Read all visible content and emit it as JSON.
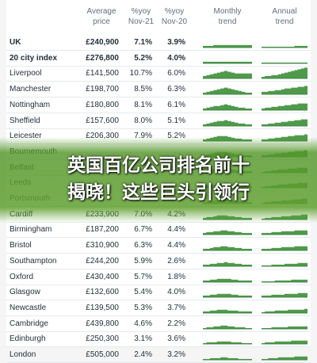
{
  "headers": {
    "avg_price": "Average price",
    "yoy_nov21": "%yoy Nov-21",
    "yoy_nov20": "%yoy Nov-20",
    "monthly": "Monthly trend",
    "annual": "Annual trend"
  },
  "rows": [
    {
      "city": "UK",
      "price": "£240,900",
      "yoy21": "7.1%",
      "yoy20": "3.9%",
      "bold": true,
      "monthly": [
        2,
        2,
        2,
        3,
        3,
        3,
        3,
        3,
        3,
        3,
        3,
        3,
        3,
        3
      ],
      "annual": [
        1,
        1,
        1,
        1,
        1,
        1,
        1,
        1,
        1,
        1,
        2,
        2,
        2,
        2
      ]
    },
    {
      "city": "20 city index",
      "price": "£276,800",
      "yoy21": "5.2%",
      "yoy20": "4.0%",
      "bold": true,
      "monthly": [
        2,
        2,
        2,
        2,
        2,
        2,
        2,
        2,
        2,
        2,
        2,
        2,
        2,
        2
      ],
      "annual": [
        1,
        1,
        1,
        1,
        1,
        1,
        1,
        1,
        1,
        1,
        1,
        1,
        1,
        1
      ]
    },
    {
      "city": "Liverpool",
      "price": "£141,500",
      "yoy21": "10.7%",
      "yoy20": "6.0%",
      "monthly": [
        3,
        4,
        5,
        6,
        7,
        8,
        9,
        8,
        7,
        6,
        6,
        6,
        6,
        6
      ],
      "annual": [
        2,
        3,
        3,
        4,
        4,
        5,
        6,
        7,
        8,
        9,
        10,
        11,
        12,
        13
      ]
    },
    {
      "city": "Manchester",
      "price": "£198,700",
      "yoy21": "8.5%",
      "yoy20": "6.3%",
      "monthly": [
        2,
        3,
        4,
        5,
        6,
        7,
        8,
        7,
        6,
        5,
        4,
        3,
        2,
        2
      ],
      "annual": [
        3,
        3,
        4,
        4,
        5,
        5,
        6,
        7,
        7,
        8,
        8,
        9,
        9,
        10
      ]
    },
    {
      "city": "Nottingham",
      "price": "£180,800",
      "yoy21": "8.1%",
      "yoy20": "6.1%",
      "monthly": [
        2,
        3,
        4,
        5,
        5,
        6,
        7,
        6,
        5,
        4,
        3,
        3,
        2,
        2
      ],
      "annual": [
        2,
        3,
        3,
        4,
        4,
        5,
        5,
        6,
        6,
        7,
        7,
        8,
        8,
        8
      ]
    },
    {
      "city": "Sheffield",
      "price": "£157,600",
      "yoy21": "8.0%",
      "yoy20": "5.1%",
      "monthly": [
        2,
        3,
        4,
        5,
        6,
        6,
        7,
        6,
        5,
        4,
        3,
        3,
        2,
        2
      ],
      "annual": [
        2,
        2,
        3,
        3,
        4,
        4,
        5,
        5,
        6,
        6,
        7,
        7,
        8,
        8
      ]
    },
    {
      "city": "Leicester",
      "price": "£206,300",
      "yoy21": "7.9%",
      "yoy20": "5.2%",
      "monthly": [
        2,
        3,
        4,
        5,
        6,
        6,
        6,
        5,
        4,
        3,
        3,
        2,
        2,
        2
      ],
      "annual": [
        2,
        2,
        3,
        3,
        4,
        4,
        5,
        5,
        6,
        6,
        7,
        7,
        7,
        8
      ]
    },
    {
      "city": "Bournemouth",
      "price": "",
      "yoy21": "",
      "yoy20": "",
      "monthly": [
        2,
        3,
        4,
        5,
        6,
        6,
        6,
        5,
        4,
        3,
        3,
        2,
        2,
        2
      ],
      "annual": [
        2,
        2,
        3,
        3,
        4,
        4,
        5,
        5,
        6,
        6,
        7,
        7,
        7,
        8
      ]
    },
    {
      "city": "Belfast",
      "price": "",
      "yoy21": "",
      "yoy20": "",
      "monthly": [
        2,
        3,
        4,
        4,
        5,
        5,
        5,
        4,
        4,
        3,
        3,
        2,
        2,
        2
      ],
      "annual": [
        1,
        2,
        2,
        3,
        3,
        4,
        4,
        4,
        5,
        5,
        5,
        6,
        6,
        6
      ]
    },
    {
      "city": "Leeds",
      "price": "",
      "yoy21": "",
      "yoy20": "",
      "monthly": [
        2,
        3,
        3,
        4,
        5,
        5,
        5,
        4,
        4,
        3,
        3,
        2,
        2,
        2
      ],
      "annual": [
        1,
        2,
        2,
        3,
        3,
        4,
        4,
        4,
        5,
        5,
        5,
        6,
        6,
        6
      ]
    },
    {
      "city": "Portsmouth",
      "price": "",
      "yoy21": "",
      "yoy20": "",
      "monthly": [
        2,
        3,
        3,
        4,
        5,
        5,
        5,
        4,
        4,
        3,
        3,
        2,
        2,
        2
      ],
      "annual": [
        1,
        2,
        2,
        3,
        3,
        3,
        4,
        4,
        4,
        5,
        5,
        5,
        6,
        6
      ]
    },
    {
      "city": "Cardiff",
      "price": "£233,900",
      "yoy21": "7.0%",
      "yoy20": "4.2%",
      "monthly": [
        2,
        3,
        3,
        4,
        5,
        5,
        5,
        4,
        4,
        3,
        3,
        2,
        2,
        2
      ],
      "annual": [
        1,
        2,
        2,
        3,
        3,
        3,
        4,
        4,
        4,
        5,
        5,
        5,
        6,
        6
      ]
    },
    {
      "city": "Birmingham",
      "price": "£187,200",
      "yoy21": "6.7%",
      "yoy20": "4.4%",
      "monthly": [
        2,
        3,
        3,
        4,
        4,
        5,
        5,
        4,
        4,
        3,
        3,
        2,
        2,
        2
      ],
      "annual": [
        2,
        2,
        2,
        3,
        3,
        3,
        4,
        4,
        4,
        4,
        5,
        5,
        5,
        5
      ]
    },
    {
      "city": "Bristol",
      "price": "£310,900",
      "yoy21": "6.3%",
      "yoy20": "4.4%",
      "monthly": [
        2,
        2,
        3,
        4,
        4,
        5,
        5,
        4,
        4,
        3,
        3,
        2,
        2,
        2
      ],
      "annual": [
        2,
        2,
        2,
        3,
        3,
        3,
        4,
        4,
        4,
        4,
        5,
        5,
        5,
        5
      ]
    },
    {
      "city": "Southampton",
      "price": "£244,200",
      "yoy21": "5.9%",
      "yoy20": "2.6%",
      "monthly": [
        2,
        2,
        3,
        3,
        4,
        4,
        5,
        4,
        4,
        3,
        3,
        2,
        2,
        2
      ],
      "annual": [
        1,
        1,
        1,
        2,
        2,
        2,
        2,
        3,
        3,
        3,
        3,
        4,
        4,
        4
      ]
    },
    {
      "city": "Oxford",
      "price": "£430,400",
      "yoy21": "5.7%",
      "yoy20": "1.8%",
      "monthly": [
        2,
        2,
        3,
        3,
        4,
        4,
        4,
        4,
        3,
        3,
        2,
        2,
        2,
        2
      ],
      "annual": [
        1,
        1,
        1,
        1,
        2,
        2,
        2,
        2,
        2,
        3,
        3,
        3,
        3,
        3
      ]
    },
    {
      "city": "Glasgow",
      "price": "£132,600",
      "yoy21": "5.4%",
      "yoy20": "4.0%",
      "monthly": [
        2,
        2,
        3,
        3,
        4,
        4,
        4,
        4,
        3,
        3,
        2,
        2,
        2,
        2
      ],
      "annual": [
        2,
        2,
        2,
        3,
        3,
        3,
        3,
        4,
        4,
        4,
        4,
        5,
        5,
        5
      ]
    },
    {
      "city": "Newcastle",
      "price": "£139,500",
      "yoy21": "5.3%",
      "yoy20": "3.7%",
      "monthly": [
        2,
        2,
        3,
        3,
        4,
        4,
        4,
        3,
        3,
        3,
        2,
        2,
        2,
        2
      ],
      "annual": [
        1,
        2,
        2,
        2,
        3,
        3,
        3,
        3,
        4,
        4,
        4,
        4,
        4,
        5
      ]
    },
    {
      "city": "Cambridge",
      "price": "£439,800",
      "yoy21": "4.6%",
      "yoy20": "2.2%",
      "monthly": [
        1,
        2,
        2,
        3,
        3,
        4,
        4,
        3,
        3,
        2,
        2,
        2,
        1,
        1
      ],
      "annual": [
        1,
        1,
        1,
        2,
        2,
        2,
        2,
        2,
        3,
        3,
        3,
        3,
        3,
        3
      ]
    },
    {
      "city": "Edinburgh",
      "price": "£250,300",
      "yoy21": "3.1%",
      "yoy20": "3.6%",
      "monthly": [
        1,
        2,
        2,
        2,
        3,
        3,
        3,
        3,
        2,
        2,
        2,
        1,
        1,
        1
      ],
      "annual": [
        1,
        2,
        2,
        2,
        3,
        3,
        3,
        3,
        3,
        4,
        4,
        4,
        4,
        4
      ]
    },
    {
      "city": "London",
      "price": "£505,000",
      "yoy21": "2.4%",
      "yoy20": "3.2%",
      "monthly": [
        1,
        1,
        2,
        2,
        2,
        3,
        3,
        2,
        2,
        2,
        1,
        1,
        1,
        1
      ],
      "annual": [
        1,
        1,
        2,
        2,
        2,
        3,
        3,
        3,
        3,
        3,
        4,
        4,
        4,
        4
      ]
    }
  ],
  "overlay": {
    "line1": "英国百亿公司排名前十",
    "line2": "揭晓！这些巨头引领行"
  },
  "colors": {
    "spark": "#4f9a4a",
    "baseline": "#2f7d3a"
  }
}
